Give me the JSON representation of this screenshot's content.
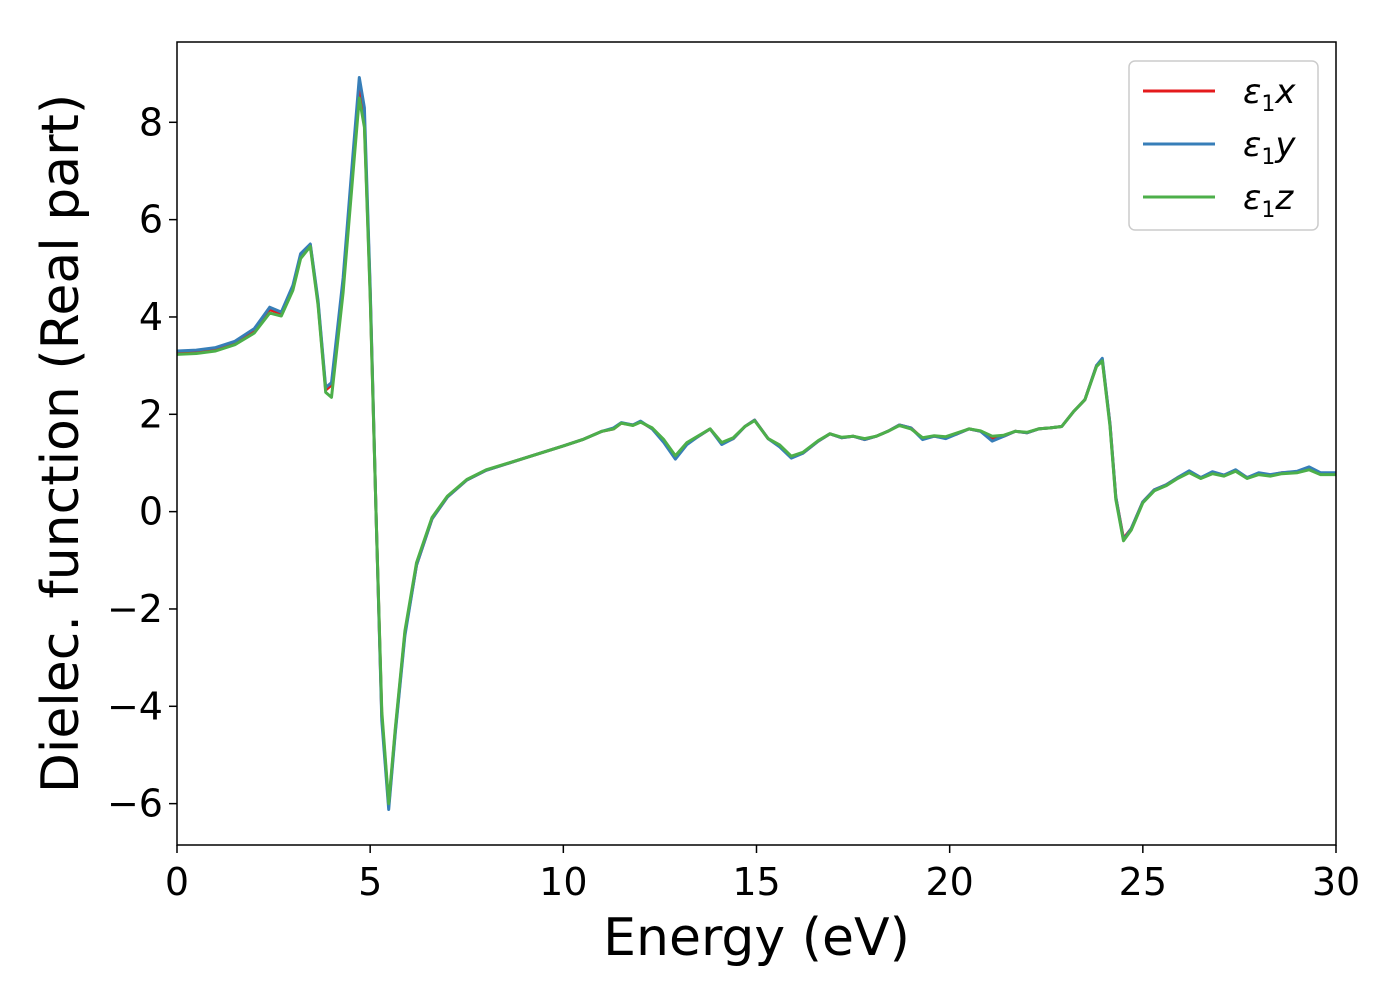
{
  "chart_data": {
    "type": "line",
    "title": "",
    "xlabel": "Energy (eV)",
    "ylabel": "Dielec. function (Real part)",
    "xlim": [
      0,
      30
    ],
    "ylim": [
      -6.85,
      9.65
    ],
    "xticks": [
      0,
      5,
      10,
      15,
      20,
      25,
      30
    ],
    "yticks": [
      -6,
      -4,
      -2,
      0,
      2,
      4,
      6,
      8
    ],
    "xtick_labels": [
      "0",
      "5",
      "10",
      "15",
      "20",
      "25",
      "30"
    ],
    "ytick_labels": [
      "−6",
      "−4",
      "−2",
      "0",
      "2",
      "4",
      "6",
      "8"
    ],
    "grid": false,
    "legend_position": "top-right",
    "series": [
      {
        "name": "x",
        "color": "#e41a1c",
        "points": [
          [
            0,
            3.27
          ],
          [
            0.5,
            3.29
          ],
          [
            1.0,
            3.34
          ],
          [
            1.5,
            3.47
          ],
          [
            2.0,
            3.72
          ],
          [
            2.4,
            4.15
          ],
          [
            2.7,
            4.07
          ],
          [
            3.0,
            4.6
          ],
          [
            3.2,
            5.25
          ],
          [
            3.45,
            5.48
          ],
          [
            3.65,
            4.3
          ],
          [
            3.85,
            2.5
          ],
          [
            4.0,
            2.6
          ],
          [
            4.3,
            4.6
          ],
          [
            4.55,
            7.0
          ],
          [
            4.72,
            8.65
          ],
          [
            4.85,
            8.0
          ],
          [
            5.0,
            4.5
          ],
          [
            5.15,
            0.0
          ],
          [
            5.3,
            -4.2
          ],
          [
            5.48,
            -6.05
          ],
          [
            5.65,
            -4.5
          ],
          [
            5.9,
            -2.5
          ],
          [
            6.2,
            -1.1
          ],
          [
            6.6,
            -0.15
          ],
          [
            7.0,
            0.3
          ],
          [
            7.5,
            0.65
          ],
          [
            8.0,
            0.85
          ],
          [
            9.0,
            1.1
          ],
          [
            10.0,
            1.35
          ],
          [
            10.5,
            1.48
          ],
          [
            11.0,
            1.65
          ],
          [
            11.3,
            1.7
          ],
          [
            11.5,
            1.82
          ],
          [
            11.8,
            1.78
          ],
          [
            12.0,
            1.85
          ],
          [
            12.3,
            1.7
          ],
          [
            12.6,
            1.45
          ],
          [
            12.9,
            1.1
          ],
          [
            13.2,
            1.4
          ],
          [
            13.5,
            1.55
          ],
          [
            13.8,
            1.7
          ],
          [
            14.1,
            1.4
          ],
          [
            14.4,
            1.5
          ],
          [
            14.7,
            1.75
          ],
          [
            14.95,
            1.88
          ],
          [
            15.3,
            1.5
          ],
          [
            15.6,
            1.35
          ],
          [
            15.9,
            1.12
          ],
          [
            16.2,
            1.2
          ],
          [
            16.6,
            1.45
          ],
          [
            16.9,
            1.6
          ],
          [
            17.2,
            1.52
          ],
          [
            17.5,
            1.55
          ],
          [
            17.8,
            1.48
          ],
          [
            18.1,
            1.55
          ],
          [
            18.4,
            1.65
          ],
          [
            18.7,
            1.78
          ],
          [
            19.0,
            1.72
          ],
          [
            19.3,
            1.5
          ],
          [
            19.6,
            1.55
          ],
          [
            19.9,
            1.52
          ],
          [
            20.2,
            1.6
          ],
          [
            20.5,
            1.7
          ],
          [
            20.8,
            1.65
          ],
          [
            21.1,
            1.5
          ],
          [
            21.4,
            1.55
          ],
          [
            21.7,
            1.65
          ],
          [
            22.0,
            1.62
          ],
          [
            22.3,
            1.7
          ],
          [
            22.6,
            1.72
          ],
          [
            22.9,
            1.75
          ],
          [
            23.2,
            2.05
          ],
          [
            23.5,
            2.3
          ],
          [
            23.8,
            3.0
          ],
          [
            23.95,
            3.12
          ],
          [
            24.15,
            1.8
          ],
          [
            24.3,
            0.3
          ],
          [
            24.5,
            -0.55
          ],
          [
            24.7,
            -0.35
          ],
          [
            25.0,
            0.2
          ],
          [
            25.3,
            0.45
          ],
          [
            25.6,
            0.55
          ],
          [
            25.9,
            0.7
          ],
          [
            26.2,
            0.82
          ],
          [
            26.5,
            0.7
          ],
          [
            26.8,
            0.8
          ],
          [
            27.1,
            0.75
          ],
          [
            27.4,
            0.85
          ],
          [
            27.7,
            0.7
          ],
          [
            28.0,
            0.78
          ],
          [
            28.3,
            0.75
          ],
          [
            28.6,
            0.8
          ],
          [
            29.0,
            0.82
          ],
          [
            29.3,
            0.9
          ],
          [
            29.6,
            0.78
          ],
          [
            30.0,
            0.78
          ]
        ]
      },
      {
        "name": "y",
        "color": "#377eb8",
        "points": [
          [
            0,
            3.3
          ],
          [
            0.5,
            3.32
          ],
          [
            1.0,
            3.37
          ],
          [
            1.5,
            3.5
          ],
          [
            2.0,
            3.76
          ],
          [
            2.4,
            4.2
          ],
          [
            2.7,
            4.1
          ],
          [
            3.0,
            4.65
          ],
          [
            3.2,
            5.3
          ],
          [
            3.45,
            5.5
          ],
          [
            3.65,
            4.35
          ],
          [
            3.85,
            2.55
          ],
          [
            4.0,
            2.65
          ],
          [
            4.3,
            4.8
          ],
          [
            4.55,
            7.3
          ],
          [
            4.72,
            8.92
          ],
          [
            4.85,
            8.3
          ],
          [
            5.0,
            4.6
          ],
          [
            5.15,
            0.0
          ],
          [
            5.3,
            -4.3
          ],
          [
            5.48,
            -6.12
          ],
          [
            5.65,
            -4.55
          ],
          [
            5.9,
            -2.55
          ],
          [
            6.2,
            -1.1
          ],
          [
            6.6,
            -0.15
          ],
          [
            7.0,
            0.3
          ],
          [
            7.5,
            0.65
          ],
          [
            8.0,
            0.85
          ],
          [
            9.0,
            1.1
          ],
          [
            10.0,
            1.35
          ],
          [
            10.5,
            1.48
          ],
          [
            11.0,
            1.65
          ],
          [
            11.3,
            1.72
          ],
          [
            11.5,
            1.83
          ],
          [
            11.8,
            1.78
          ],
          [
            12.0,
            1.86
          ],
          [
            12.3,
            1.7
          ],
          [
            12.6,
            1.42
          ],
          [
            12.9,
            1.08
          ],
          [
            13.2,
            1.38
          ],
          [
            13.5,
            1.55
          ],
          [
            13.8,
            1.7
          ],
          [
            14.1,
            1.38
          ],
          [
            14.4,
            1.5
          ],
          [
            14.7,
            1.75
          ],
          [
            14.95,
            1.88
          ],
          [
            15.3,
            1.5
          ],
          [
            15.6,
            1.33
          ],
          [
            15.9,
            1.1
          ],
          [
            16.2,
            1.2
          ],
          [
            16.6,
            1.45
          ],
          [
            16.9,
            1.6
          ],
          [
            17.2,
            1.52
          ],
          [
            17.5,
            1.55
          ],
          [
            17.8,
            1.48
          ],
          [
            18.1,
            1.55
          ],
          [
            18.4,
            1.65
          ],
          [
            18.7,
            1.78
          ],
          [
            19.0,
            1.72
          ],
          [
            19.3,
            1.48
          ],
          [
            19.6,
            1.55
          ],
          [
            19.9,
            1.5
          ],
          [
            20.2,
            1.6
          ],
          [
            20.5,
            1.7
          ],
          [
            20.8,
            1.65
          ],
          [
            21.1,
            1.45
          ],
          [
            21.4,
            1.55
          ],
          [
            21.7,
            1.65
          ],
          [
            22.0,
            1.62
          ],
          [
            22.3,
            1.7
          ],
          [
            22.6,
            1.72
          ],
          [
            22.9,
            1.75
          ],
          [
            23.2,
            2.05
          ],
          [
            23.5,
            2.3
          ],
          [
            23.8,
            3.0
          ],
          [
            23.95,
            3.15
          ],
          [
            24.15,
            1.8
          ],
          [
            24.3,
            0.3
          ],
          [
            24.5,
            -0.58
          ],
          [
            24.7,
            -0.35
          ],
          [
            25.0,
            0.2
          ],
          [
            25.3,
            0.45
          ],
          [
            25.6,
            0.55
          ],
          [
            25.9,
            0.7
          ],
          [
            26.2,
            0.84
          ],
          [
            26.5,
            0.7
          ],
          [
            26.8,
            0.82
          ],
          [
            27.1,
            0.75
          ],
          [
            27.4,
            0.86
          ],
          [
            27.7,
            0.7
          ],
          [
            28.0,
            0.8
          ],
          [
            28.3,
            0.76
          ],
          [
            28.6,
            0.8
          ],
          [
            29.0,
            0.83
          ],
          [
            29.3,
            0.92
          ],
          [
            29.6,
            0.8
          ],
          [
            30.0,
            0.8
          ]
        ]
      },
      {
        "name": "z",
        "color": "#4daf4a",
        "points": [
          [
            0,
            3.23
          ],
          [
            0.5,
            3.25
          ],
          [
            1.0,
            3.3
          ],
          [
            1.5,
            3.43
          ],
          [
            2.0,
            3.67
          ],
          [
            2.4,
            4.08
          ],
          [
            2.7,
            4.02
          ],
          [
            3.0,
            4.55
          ],
          [
            3.2,
            5.2
          ],
          [
            3.45,
            5.45
          ],
          [
            3.65,
            4.25
          ],
          [
            3.85,
            2.45
          ],
          [
            4.0,
            2.35
          ],
          [
            4.3,
            4.5
          ],
          [
            4.55,
            6.9
          ],
          [
            4.72,
            8.5
          ],
          [
            4.85,
            7.9
          ],
          [
            5.0,
            4.4
          ],
          [
            5.15,
            0.0
          ],
          [
            5.3,
            -4.1
          ],
          [
            5.48,
            -6.0
          ],
          [
            5.65,
            -4.45
          ],
          [
            5.9,
            -2.45
          ],
          [
            6.2,
            -1.05
          ],
          [
            6.6,
            -0.12
          ],
          [
            7.0,
            0.32
          ],
          [
            7.5,
            0.66
          ],
          [
            8.0,
            0.86
          ],
          [
            9.0,
            1.1
          ],
          [
            10.0,
            1.35
          ],
          [
            10.5,
            1.48
          ],
          [
            11.0,
            1.65
          ],
          [
            11.3,
            1.7
          ],
          [
            11.5,
            1.82
          ],
          [
            11.8,
            1.77
          ],
          [
            12.0,
            1.84
          ],
          [
            12.3,
            1.72
          ],
          [
            12.6,
            1.48
          ],
          [
            12.9,
            1.15
          ],
          [
            13.2,
            1.42
          ],
          [
            13.5,
            1.56
          ],
          [
            13.8,
            1.7
          ],
          [
            14.1,
            1.42
          ],
          [
            14.4,
            1.52
          ],
          [
            14.7,
            1.75
          ],
          [
            14.95,
            1.87
          ],
          [
            15.3,
            1.5
          ],
          [
            15.6,
            1.37
          ],
          [
            15.9,
            1.14
          ],
          [
            16.2,
            1.22
          ],
          [
            16.6,
            1.46
          ],
          [
            16.9,
            1.6
          ],
          [
            17.2,
            1.53
          ],
          [
            17.5,
            1.55
          ],
          [
            17.8,
            1.5
          ],
          [
            18.1,
            1.55
          ],
          [
            18.4,
            1.65
          ],
          [
            18.7,
            1.77
          ],
          [
            19.0,
            1.7
          ],
          [
            19.3,
            1.52
          ],
          [
            19.6,
            1.56
          ],
          [
            19.9,
            1.54
          ],
          [
            20.2,
            1.62
          ],
          [
            20.5,
            1.7
          ],
          [
            20.8,
            1.66
          ],
          [
            21.1,
            1.55
          ],
          [
            21.4,
            1.57
          ],
          [
            21.7,
            1.65
          ],
          [
            22.0,
            1.63
          ],
          [
            22.3,
            1.7
          ],
          [
            22.6,
            1.72
          ],
          [
            22.9,
            1.75
          ],
          [
            23.2,
            2.05
          ],
          [
            23.5,
            2.3
          ],
          [
            23.8,
            2.98
          ],
          [
            23.95,
            3.1
          ],
          [
            24.15,
            1.75
          ],
          [
            24.3,
            0.25
          ],
          [
            24.5,
            -0.6
          ],
          [
            24.7,
            -0.38
          ],
          [
            25.0,
            0.18
          ],
          [
            25.3,
            0.43
          ],
          [
            25.6,
            0.53
          ],
          [
            25.9,
            0.68
          ],
          [
            26.2,
            0.8
          ],
          [
            26.5,
            0.68
          ],
          [
            26.8,
            0.78
          ],
          [
            27.1,
            0.73
          ],
          [
            27.4,
            0.83
          ],
          [
            27.7,
            0.68
          ],
          [
            28.0,
            0.76
          ],
          [
            28.3,
            0.73
          ],
          [
            28.6,
            0.78
          ],
          [
            29.0,
            0.8
          ],
          [
            29.3,
            0.86
          ],
          [
            29.6,
            0.76
          ],
          [
            30.0,
            0.76
          ]
        ]
      }
    ],
    "legend": [
      {
        "base": "ε",
        "sub": "1",
        "axis": "x",
        "color": "#e41a1c"
      },
      {
        "base": "ε",
        "sub": "1",
        "axis": "y",
        "color": "#377eb8"
      },
      {
        "base": "ε",
        "sub": "1",
        "axis": "z",
        "color": "#4daf4a"
      }
    ]
  }
}
